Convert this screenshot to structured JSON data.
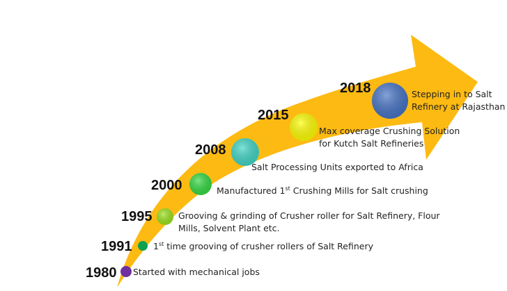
{
  "colors": {
    "arrow": "#FDBA12"
  },
  "timeline": [
    {
      "year": "1980",
      "text": "Started with mechanical jobs",
      "color": "#7030A0"
    },
    {
      "year": "1991",
      "pre": "1",
      "sup": "st",
      "post": " time grooving of crusher rollers of Salt Refinery",
      "color": "#10A050"
    },
    {
      "year": "1995",
      "line1": "Grooving & grinding of Crusher roller for Salt Refinery, Flour",
      "line2": "Mills, Solvent Plant etc.",
      "color": "#9AE21A"
    },
    {
      "year": "2000",
      "pre": "Manufactured 1",
      "sup": "st",
      "post": " Crushing Mills for Salt crushing",
      "color": "#33D840"
    },
    {
      "year": "2008",
      "text": "Salt Processing Units exported to Africa",
      "color": "#3FD5C5"
    },
    {
      "year": "2015",
      "line1": "Max coverage Crushing Solution",
      "line2": "for Kutch Salt Refineries",
      "color": "#FFFF00"
    },
    {
      "year": "2018",
      "line1": "Stepping in to Salt",
      "line2": "Refinery at Rajasthan",
      "color": "#4472C4"
    }
  ]
}
